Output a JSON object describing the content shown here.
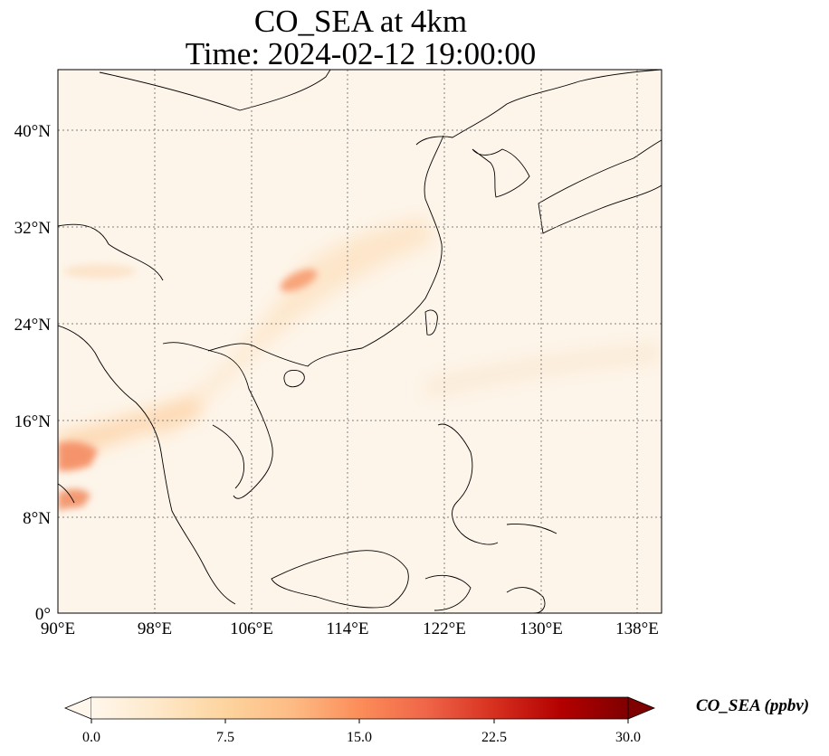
{
  "title_line1": "CO_SEA at 4km",
  "title_line2": "Time: 2024-02-12 19:00:00",
  "map": {
    "lon_range": [
      90,
      140
    ],
    "lat_range": [
      0,
      45
    ],
    "background_color": "#fdf5ea",
    "gridline_style": "dotted gray",
    "lon_ticks": [
      "90°E",
      "98°E",
      "106°E",
      "114°E",
      "122°E",
      "130°E",
      "138°E"
    ],
    "lat_ticks": [
      "0°",
      "8°N",
      "16°N",
      "24°N",
      "32°N",
      "40°N"
    ]
  },
  "colorbar": {
    "label": "CO_SEA (ppbv)",
    "colormap": "OrRd",
    "colors": [
      "#fff7ec",
      "#fee8c8",
      "#fdd49e",
      "#fdbb84",
      "#fc8d59",
      "#ef6548",
      "#d7301f",
      "#b30000",
      "#7f0000"
    ],
    "min": 0.0,
    "max": 30.0,
    "extend": "both",
    "ticks": [
      "0.0",
      "7.5",
      "15.0",
      "22.5",
      "30.0"
    ]
  }
}
